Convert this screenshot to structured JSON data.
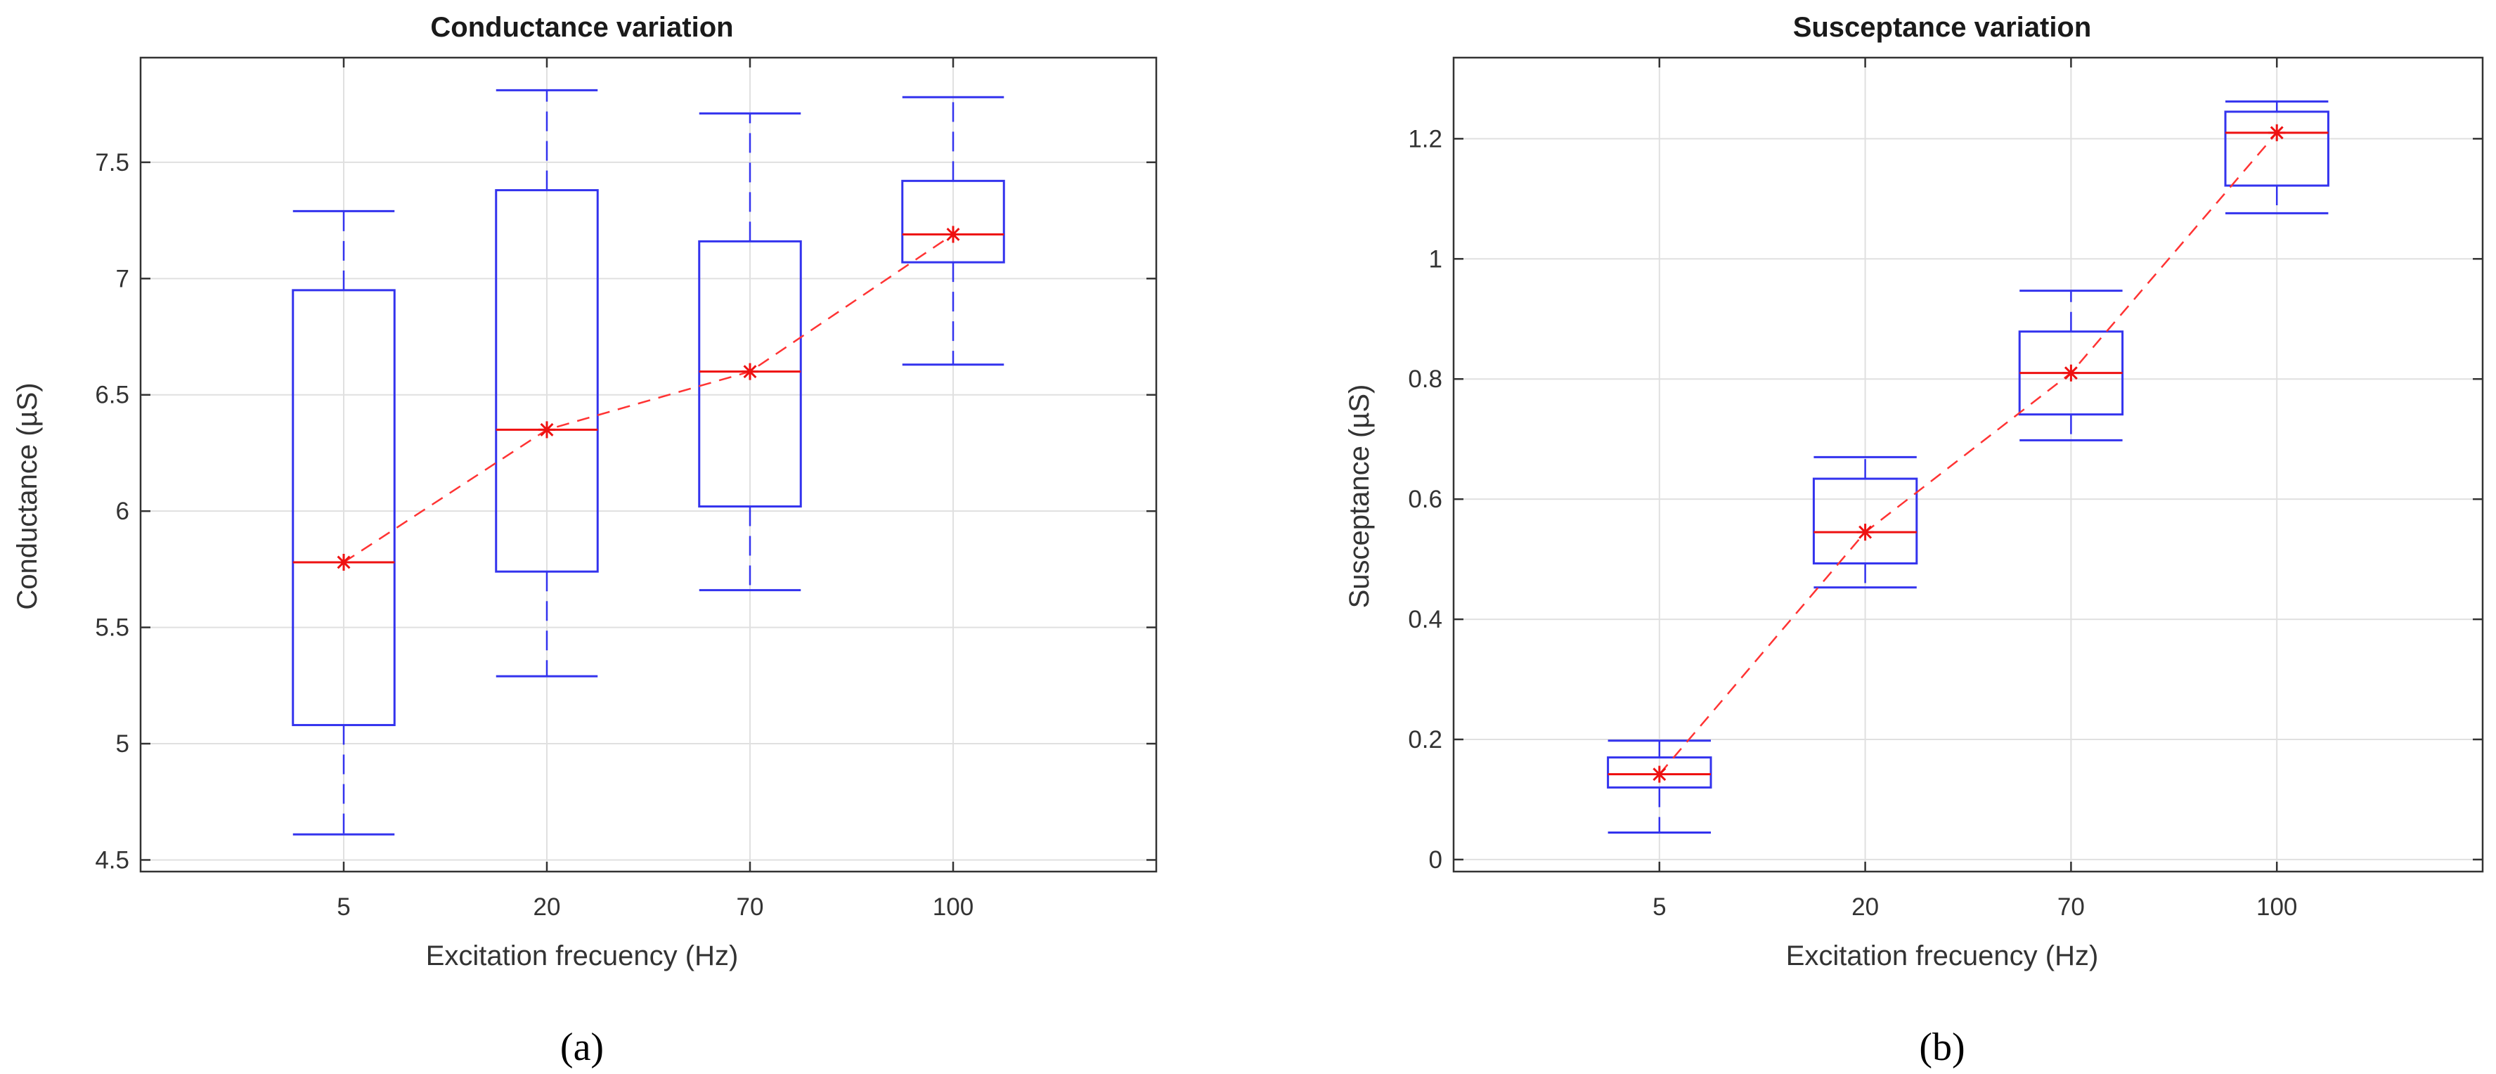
{
  "figure": {
    "captions": [
      "(a)",
      "(b)"
    ]
  },
  "chart_data": [
    {
      "type": "box",
      "title": "Conductance variation",
      "xlabel": "Excitation frecuency (Hz)",
      "ylabel": "Conductance (µS)",
      "categories": [
        "5",
        "20",
        "70",
        "100"
      ],
      "ylim": [
        4.45,
        7.95
      ],
      "yticks": [
        4.5,
        5,
        5.5,
        6,
        6.5,
        7,
        7.5
      ],
      "ytick_labels": [
        "4.5",
        "5",
        "5.5",
        "6",
        "6.5",
        "7",
        "7.5"
      ],
      "grid": true,
      "boxes": [
        {
          "min": 4.61,
          "q1": 5.08,
          "median": 5.78,
          "q3": 6.95,
          "max": 7.29
        },
        {
          "min": 5.29,
          "q1": 5.74,
          "median": 6.35,
          "q3": 7.38,
          "max": 7.81
        },
        {
          "min": 5.66,
          "q1": 6.02,
          "median": 6.6,
          "q3": 7.16,
          "max": 7.71
        },
        {
          "min": 6.63,
          "q1": 7.07,
          "median": 7.19,
          "q3": 7.42,
          "max": 7.78
        }
      ],
      "mean_line": [
        5.78,
        6.35,
        6.6,
        7.19
      ],
      "colors": {
        "box": "#3333ee",
        "median": "#ee1111",
        "trend": "#ff3333",
        "grid": "#e0e0e0",
        "axis": "#333333"
      }
    },
    {
      "type": "box",
      "title": "Susceptance variation",
      "xlabel": "Excitation frecuency (Hz)",
      "ylabel": "Susceptance (µS)",
      "categories": [
        "5",
        "20",
        "70",
        "100"
      ],
      "ylim": [
        -0.02,
        1.335
      ],
      "yticks": [
        0,
        0.2,
        0.4,
        0.6,
        0.8,
        1,
        1.2
      ],
      "ytick_labels": [
        "0",
        "0.2",
        "0.4",
        "0.6",
        "0.8",
        "1",
        "1.2"
      ],
      "grid": true,
      "boxes": [
        {
          "min": 0.045,
          "q1": 0.12,
          "median": 0.142,
          "q3": 0.17,
          "max": 0.198
        },
        {
          "min": 0.453,
          "q1": 0.493,
          "median": 0.545,
          "q3": 0.634,
          "max": 0.67
        },
        {
          "min": 0.698,
          "q1": 0.741,
          "median": 0.81,
          "q3": 0.879,
          "max": 0.947
        },
        {
          "min": 1.076,
          "q1": 1.122,
          "median": 1.21,
          "q3": 1.245,
          "max": 1.262
        }
      ],
      "mean_line": [
        0.142,
        0.545,
        0.81,
        1.21
      ],
      "colors": {
        "box": "#3333ee",
        "median": "#ee1111",
        "trend": "#ff3333",
        "grid": "#e0e0e0",
        "axis": "#333333"
      }
    }
  ]
}
